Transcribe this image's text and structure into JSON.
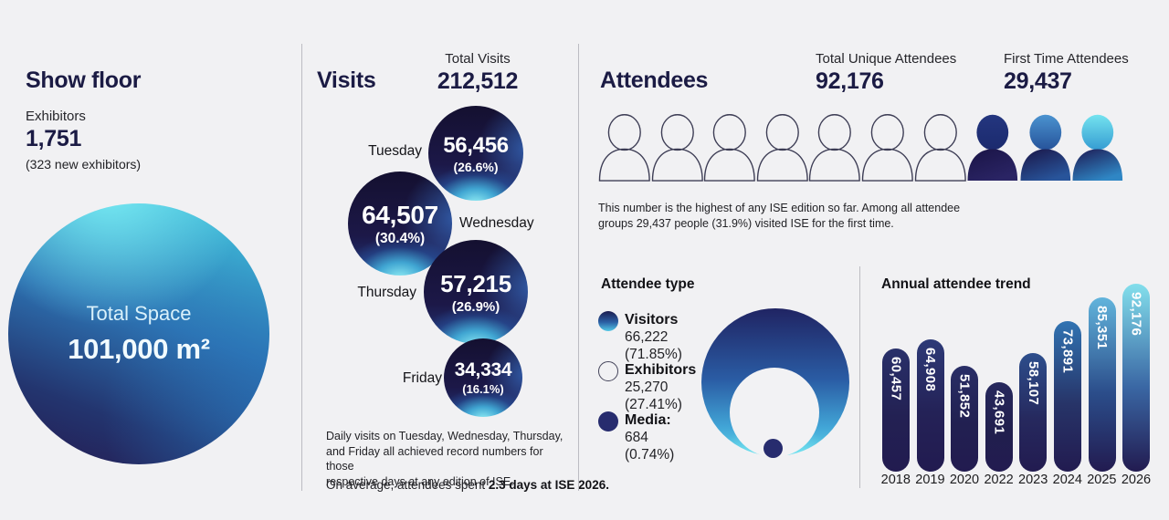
{
  "show_floor": {
    "title": "Show floor",
    "exhibitors_label": "Exhibitors",
    "exhibitors_value": "1,751",
    "exhibitors_note": "(323 new exhibitors)",
    "total_space_label": "Total Space",
    "total_space_value": "101,000 m²"
  },
  "visits": {
    "title": "Visits",
    "total_label": "Total Visits",
    "total_value": "212,512",
    "note_lines": [
      "Daily visits on Tuesday, Wednesday, Thursday,",
      "and Friday all achieved record numbers for those",
      "respective days at any edition of ISE."
    ],
    "avg_prefix": "On average, attendees spent ",
    "avg_bold": "2.3 days at ISE 2026."
  },
  "attendees": {
    "title": "Attendees",
    "total_label": "Total Unique Attendees",
    "total_value": "92,176",
    "first_time_label": "First Time Attendees",
    "first_time_value": "29,437",
    "note_lines": [
      "This number is the highest of any ISE edition so far. Among all attendee",
      "groups 29,437 people (31.9%) visited ISE for the first time."
    ],
    "type_title": "Attendee type",
    "trend_title": "Annual attendee trend",
    "people_icons": [
      "person-outline-icon",
      "person-outline-icon",
      "person-outline-icon",
      "person-outline-icon",
      "person-outline-icon",
      "person-outline-icon",
      "person-outline-icon",
      "person-filled-navy-icon",
      "person-filled-blue-icon",
      "person-filled-cyan-icon"
    ],
    "icon_colors": {
      "navy": {
        "head": [
          "#24367f",
          "#1b2a6e"
        ],
        "body": [
          "#1a1446",
          "#2a2464"
        ]
      },
      "blue": {
        "head": [
          "#4b93d0",
          "#26539a"
        ],
        "body": [
          "#1a1547",
          "#28549a"
        ]
      },
      "cyan": {
        "head": [
          "#74e3ef",
          "#359cd2"
        ],
        "body": [
          "#1d1952",
          "#2f86c4"
        ]
      }
    }
  },
  "chart_data": [
    {
      "id": "daily-visits",
      "type": "bubble",
      "title": "Visits",
      "total_label": "Total Visits",
      "total": 212512,
      "categories": [
        "Tuesday",
        "Wednesday",
        "Thursday",
        "Friday"
      ],
      "values": [
        56456,
        64507,
        57215,
        34334
      ],
      "pct": [
        26.6,
        30.4,
        26.9,
        16.1
      ],
      "value_labels": [
        "56,456",
        "64,507",
        "57,215",
        "34,334"
      ],
      "pct_labels": [
        "(26.6%)",
        "(30.4%)",
        "(26.9%)",
        "(16.1%)"
      ]
    },
    {
      "id": "attendee-type",
      "type": "circle",
      "title": "Attendee type",
      "categories": [
        "Visitors",
        "Exhibitors",
        "Media"
      ],
      "values": [
        66222,
        25270,
        684
      ],
      "pct": [
        71.85,
        27.41,
        0.74
      ],
      "legend": [
        {
          "name": "Visitors",
          "value_label": "66,222",
          "pct_label": "(71.85%)"
        },
        {
          "name": "Exhibitors",
          "value_label": "25,270",
          "pct_label": "(27.41%)"
        },
        {
          "name": "Media:",
          "value_label": "684",
          "pct_label": "(0.74%)"
        }
      ]
    },
    {
      "id": "annual-attendee-trend",
      "type": "bar",
      "title": "Annual attendee trend",
      "categories": [
        "2018",
        "2019",
        "2020",
        "2022",
        "2023",
        "2024",
        "2025",
        "2026"
      ],
      "values": [
        60457,
        64908,
        51852,
        43691,
        58107,
        73891,
        85351,
        92176
      ],
      "value_labels": [
        "60,457",
        "64,908",
        "51,852",
        "43,691",
        "58,107",
        "73,891",
        "85,351",
        "92,176"
      ],
      "ylim": [
        0,
        92176
      ],
      "bar_colors_top": [
        "#29306a",
        "#2d3a77",
        "#292e66",
        "#26285d",
        "#2d4e8c",
        "#3173b2",
        "#62b4dc",
        "#83dfec"
      ],
      "bar_colors_mid": [
        "#232153",
        "#242257",
        "#222051",
        "#211f4e",
        "#26295e",
        "#273468",
        "#2b4d8a",
        "#3a67a4"
      ],
      "bar_color_bottom": "#221b50"
    }
  ]
}
